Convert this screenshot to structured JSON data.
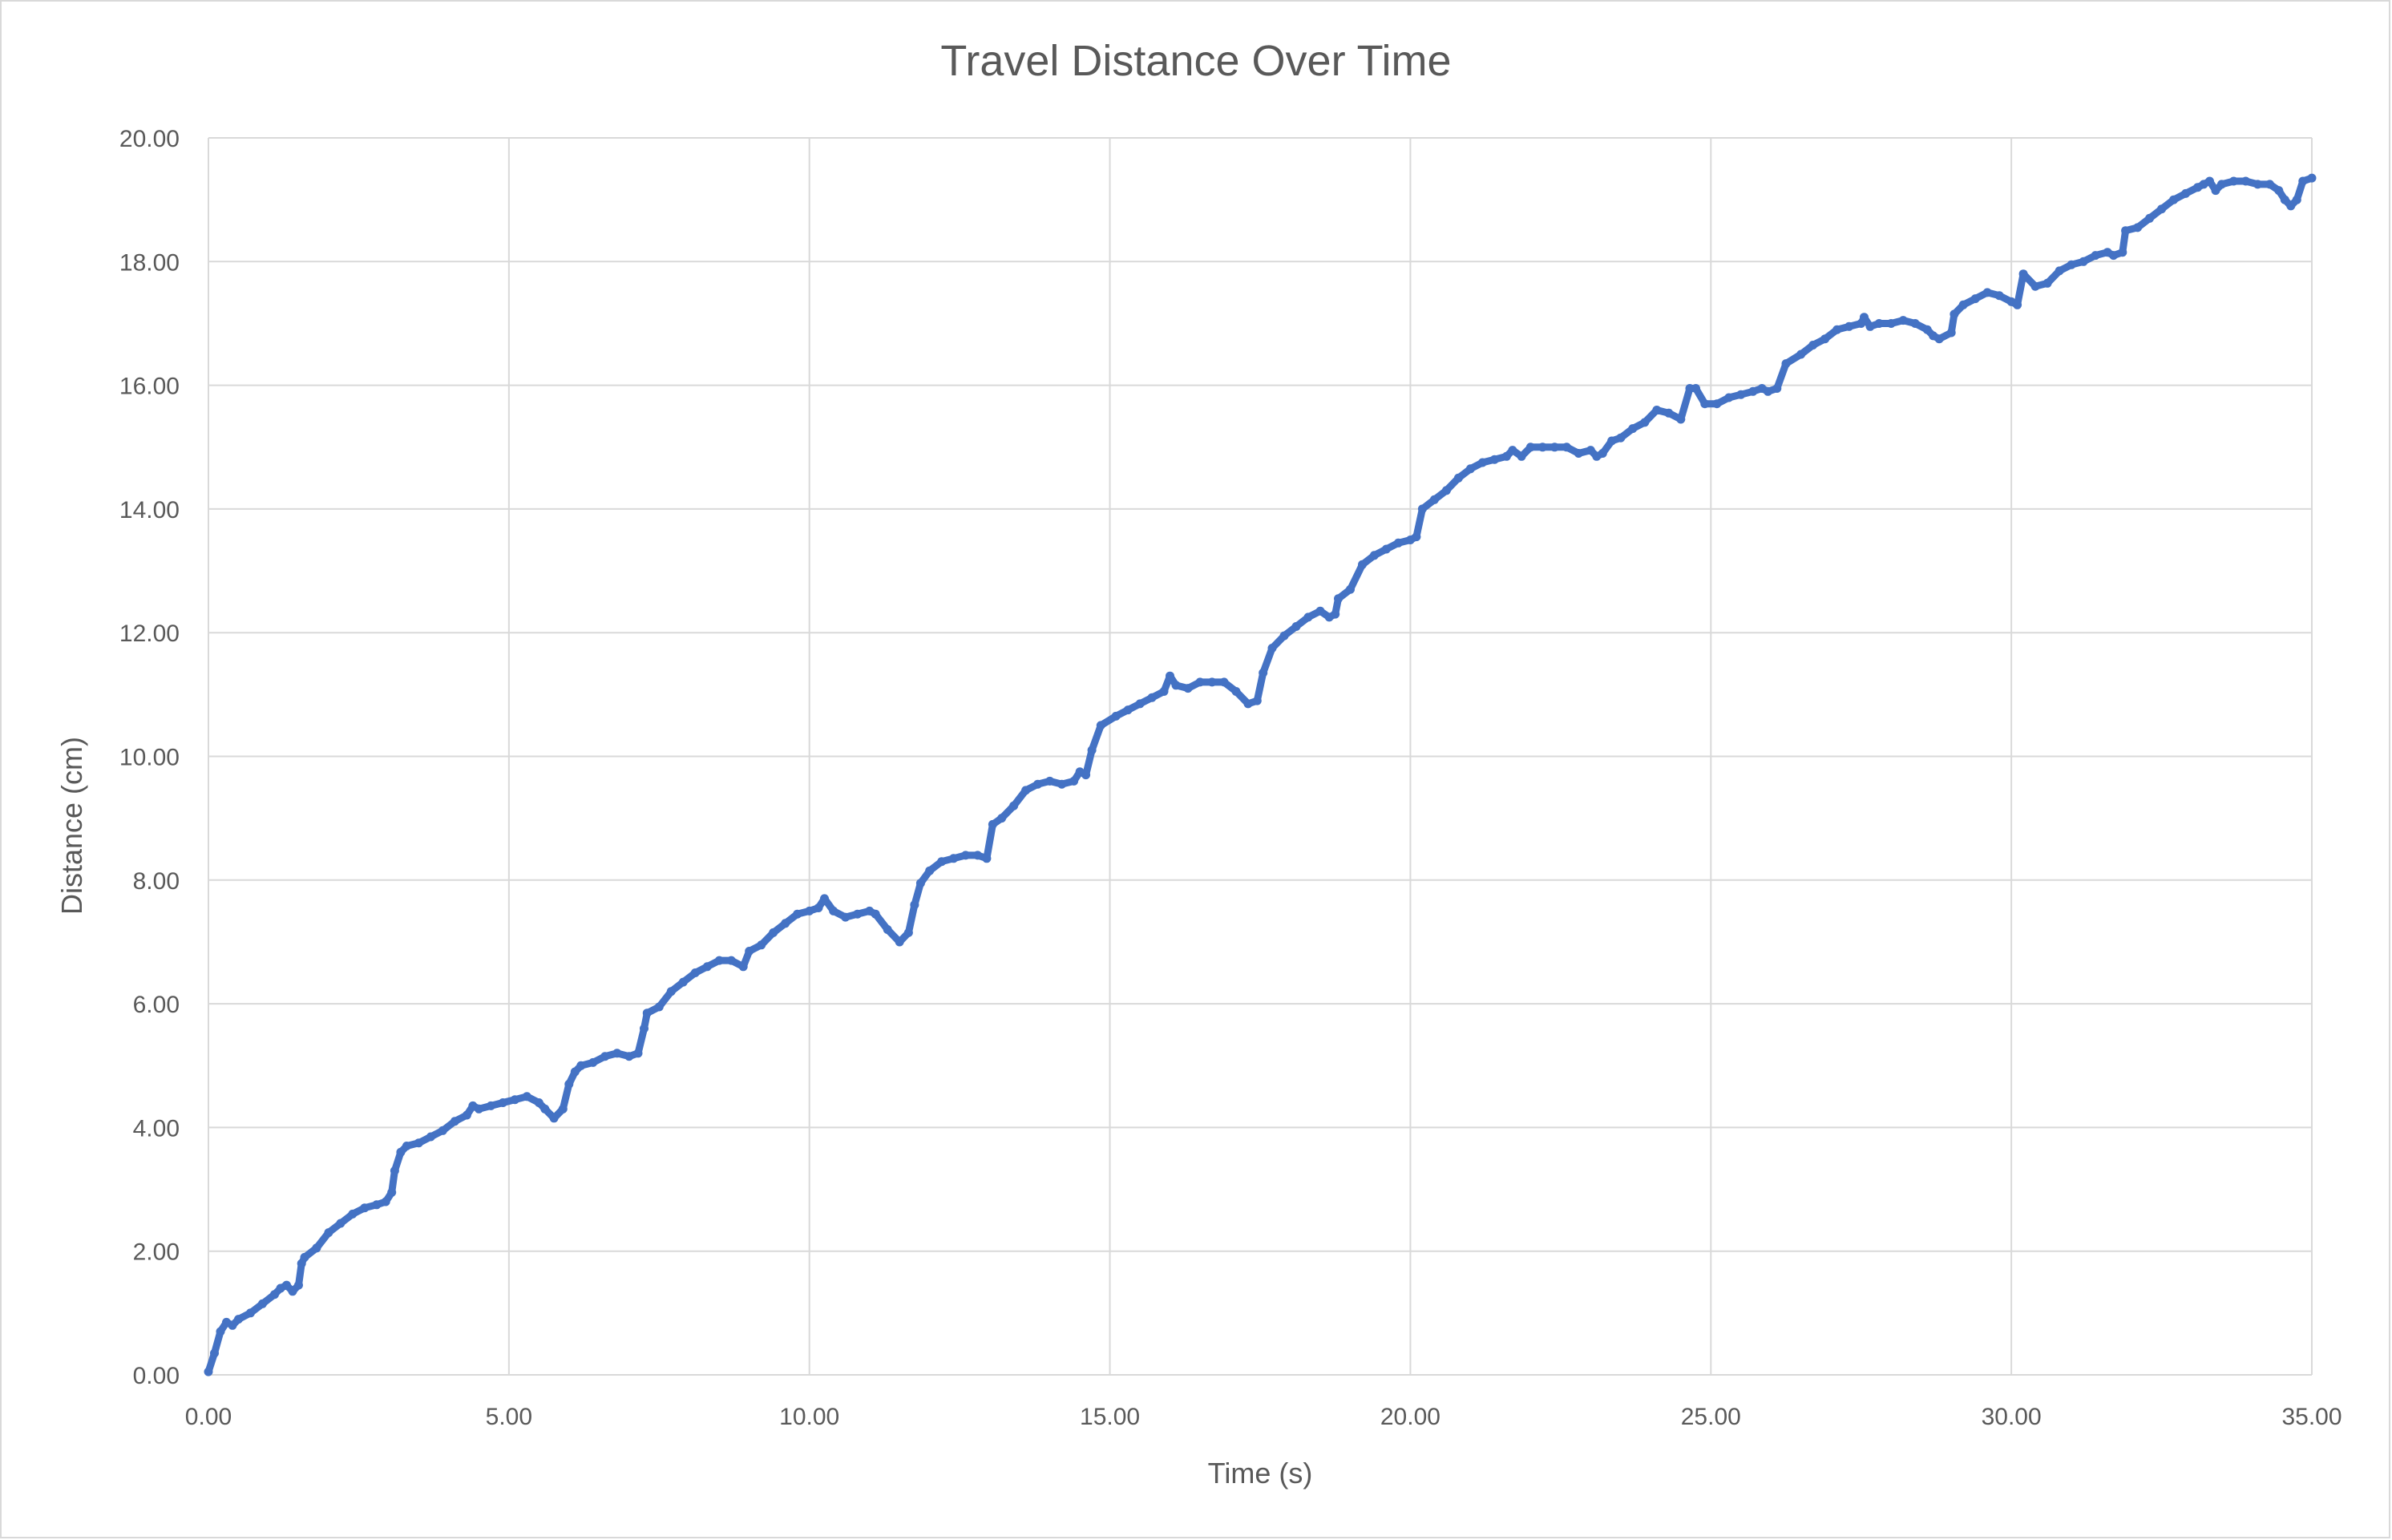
{
  "chart_data": {
    "type": "scatter",
    "title": "Travel Distance Over Time",
    "xlabel": "Time (s)",
    "ylabel": "Distance (cm)",
    "xlim": [
      0,
      35
    ],
    "ylim": [
      0,
      20
    ],
    "x_ticks": [
      "0.00",
      "5.00",
      "10.00",
      "15.00",
      "20.00",
      "25.00",
      "30.00",
      "35.00"
    ],
    "y_ticks": [
      "0.00",
      "2.00",
      "4.00",
      "6.00",
      "8.00",
      "10.00",
      "12.00",
      "14.00",
      "16.00",
      "18.00",
      "20.00"
    ],
    "grid": true,
    "legend": "none",
    "series": [
      {
        "color": "#4472C4",
        "points": [
          [
            0.0,
            0.05
          ],
          [
            0.1,
            0.35
          ],
          [
            0.2,
            0.7
          ],
          [
            0.3,
            0.85
          ],
          [
            0.4,
            0.8
          ],
          [
            0.5,
            0.9
          ],
          [
            0.7,
            1.0
          ],
          [
            0.9,
            1.15
          ],
          [
            1.1,
            1.3
          ],
          [
            1.2,
            1.4
          ],
          [
            1.3,
            1.45
          ],
          [
            1.4,
            1.35
          ],
          [
            1.5,
            1.45
          ],
          [
            1.55,
            1.8
          ],
          [
            1.6,
            1.9
          ],
          [
            1.8,
            2.05
          ],
          [
            2.0,
            2.3
          ],
          [
            2.2,
            2.45
          ],
          [
            2.4,
            2.6
          ],
          [
            2.6,
            2.7
          ],
          [
            2.8,
            2.75
          ],
          [
            2.95,
            2.8
          ],
          [
            3.05,
            2.95
          ],
          [
            3.1,
            3.3
          ],
          [
            3.2,
            3.6
          ],
          [
            3.3,
            3.7
          ],
          [
            3.5,
            3.75
          ],
          [
            3.7,
            3.85
          ],
          [
            3.9,
            3.95
          ],
          [
            4.1,
            4.1
          ],
          [
            4.3,
            4.2
          ],
          [
            4.4,
            4.35
          ],
          [
            4.5,
            4.3
          ],
          [
            4.7,
            4.35
          ],
          [
            4.9,
            4.4
          ],
          [
            5.1,
            4.45
          ],
          [
            5.3,
            4.5
          ],
          [
            5.5,
            4.4
          ],
          [
            5.6,
            4.3
          ],
          [
            5.75,
            4.15
          ],
          [
            5.9,
            4.3
          ],
          [
            6.0,
            4.7
          ],
          [
            6.1,
            4.9
          ],
          [
            6.2,
            5.0
          ],
          [
            6.4,
            5.05
          ],
          [
            6.6,
            5.15
          ],
          [
            6.8,
            5.2
          ],
          [
            7.0,
            5.15
          ],
          [
            7.15,
            5.2
          ],
          [
            7.25,
            5.6
          ],
          [
            7.3,
            5.85
          ],
          [
            7.5,
            5.95
          ],
          [
            7.7,
            6.2
          ],
          [
            7.9,
            6.35
          ],
          [
            8.1,
            6.5
          ],
          [
            8.3,
            6.6
          ],
          [
            8.5,
            6.7
          ],
          [
            8.7,
            6.7
          ],
          [
            8.9,
            6.6
          ],
          [
            9.0,
            6.85
          ],
          [
            9.2,
            6.95
          ],
          [
            9.4,
            7.15
          ],
          [
            9.6,
            7.3
          ],
          [
            9.8,
            7.45
          ],
          [
            10.0,
            7.5
          ],
          [
            10.15,
            7.55
          ],
          [
            10.25,
            7.7
          ],
          [
            10.4,
            7.5
          ],
          [
            10.6,
            7.4
          ],
          [
            10.8,
            7.45
          ],
          [
            11.0,
            7.5
          ],
          [
            11.1,
            7.45
          ],
          [
            11.3,
            7.2
          ],
          [
            11.5,
            7.0
          ],
          [
            11.65,
            7.15
          ],
          [
            11.75,
            7.6
          ],
          [
            11.85,
            7.95
          ],
          [
            12.0,
            8.15
          ],
          [
            12.2,
            8.3
          ],
          [
            12.4,
            8.35
          ],
          [
            12.6,
            8.4
          ],
          [
            12.8,
            8.4
          ],
          [
            12.95,
            8.35
          ],
          [
            13.05,
            8.9
          ],
          [
            13.2,
            9.0
          ],
          [
            13.4,
            9.2
          ],
          [
            13.6,
            9.45
          ],
          [
            13.8,
            9.55
          ],
          [
            14.0,
            9.6
          ],
          [
            14.2,
            9.55
          ],
          [
            14.4,
            9.6
          ],
          [
            14.5,
            9.75
          ],
          [
            14.6,
            9.7
          ],
          [
            14.7,
            10.1
          ],
          [
            14.85,
            10.5
          ],
          [
            15.1,
            10.65
          ],
          [
            15.3,
            10.75
          ],
          [
            15.5,
            10.85
          ],
          [
            15.7,
            10.95
          ],
          [
            15.9,
            11.05
          ],
          [
            16.0,
            11.3
          ],
          [
            16.1,
            11.15
          ],
          [
            16.3,
            11.1
          ],
          [
            16.5,
            11.2
          ],
          [
            16.7,
            11.2
          ],
          [
            16.9,
            11.2
          ],
          [
            17.1,
            11.05
          ],
          [
            17.3,
            10.85
          ],
          [
            17.45,
            10.9
          ],
          [
            17.55,
            11.35
          ],
          [
            17.7,
            11.75
          ],
          [
            17.9,
            11.95
          ],
          [
            18.1,
            12.1
          ],
          [
            18.3,
            12.25
          ],
          [
            18.5,
            12.35
          ],
          [
            18.65,
            12.25
          ],
          [
            18.75,
            12.3
          ],
          [
            18.8,
            12.55
          ],
          [
            19.0,
            12.7
          ],
          [
            19.2,
            13.1
          ],
          [
            19.4,
            13.25
          ],
          [
            19.6,
            13.35
          ],
          [
            19.8,
            13.45
          ],
          [
            20.0,
            13.5
          ],
          [
            20.1,
            13.55
          ],
          [
            20.2,
            14.0
          ],
          [
            20.4,
            14.15
          ],
          [
            20.6,
            14.3
          ],
          [
            20.8,
            14.5
          ],
          [
            21.0,
            14.65
          ],
          [
            21.2,
            14.75
          ],
          [
            21.4,
            14.8
          ],
          [
            21.6,
            14.85
          ],
          [
            21.7,
            14.95
          ],
          [
            21.85,
            14.85
          ],
          [
            22.0,
            15.0
          ],
          [
            22.2,
            15.0
          ],
          [
            22.4,
            15.0
          ],
          [
            22.6,
            15.0
          ],
          [
            22.8,
            14.9
          ],
          [
            23.0,
            14.95
          ],
          [
            23.1,
            14.85
          ],
          [
            23.2,
            14.9
          ],
          [
            23.35,
            15.1
          ],
          [
            23.5,
            15.15
          ],
          [
            23.7,
            15.3
          ],
          [
            23.9,
            15.4
          ],
          [
            24.1,
            15.6
          ],
          [
            24.3,
            15.55
          ],
          [
            24.5,
            15.45
          ],
          [
            24.65,
            15.95
          ],
          [
            24.75,
            15.95
          ],
          [
            24.9,
            15.7
          ],
          [
            25.1,
            15.7
          ],
          [
            25.3,
            15.8
          ],
          [
            25.5,
            15.85
          ],
          [
            25.7,
            15.9
          ],
          [
            25.85,
            15.95
          ],
          [
            25.95,
            15.9
          ],
          [
            26.1,
            15.95
          ],
          [
            26.25,
            16.35
          ],
          [
            26.5,
            16.5
          ],
          [
            26.7,
            16.65
          ],
          [
            26.9,
            16.75
          ],
          [
            27.1,
            16.9
          ],
          [
            27.3,
            16.95
          ],
          [
            27.5,
            17.0
          ],
          [
            27.55,
            17.1
          ],
          [
            27.65,
            16.95
          ],
          [
            27.8,
            17.0
          ],
          [
            28.0,
            17.0
          ],
          [
            28.2,
            17.05
          ],
          [
            28.4,
            17.0
          ],
          [
            28.6,
            16.9
          ],
          [
            28.7,
            16.8
          ],
          [
            28.8,
            16.75
          ],
          [
            29.0,
            16.85
          ],
          [
            29.05,
            17.15
          ],
          [
            29.2,
            17.3
          ],
          [
            29.4,
            17.4
          ],
          [
            29.6,
            17.5
          ],
          [
            29.8,
            17.45
          ],
          [
            30.0,
            17.35
          ],
          [
            30.1,
            17.3
          ],
          [
            30.2,
            17.8
          ],
          [
            30.4,
            17.6
          ],
          [
            30.6,
            17.65
          ],
          [
            30.8,
            17.85
          ],
          [
            31.0,
            17.95
          ],
          [
            31.2,
            18.0
          ],
          [
            31.4,
            18.1
          ],
          [
            31.6,
            18.15
          ],
          [
            31.7,
            18.1
          ],
          [
            31.85,
            18.15
          ],
          [
            31.9,
            18.5
          ],
          [
            32.1,
            18.55
          ],
          [
            32.3,
            18.7
          ],
          [
            32.5,
            18.85
          ],
          [
            32.7,
            19.0
          ],
          [
            32.9,
            19.1
          ],
          [
            33.1,
            19.2
          ],
          [
            33.2,
            19.25
          ],
          [
            33.3,
            19.3
          ],
          [
            33.4,
            19.15
          ],
          [
            33.5,
            19.25
          ],
          [
            33.7,
            19.3
          ],
          [
            33.9,
            19.3
          ],
          [
            34.1,
            19.25
          ],
          [
            34.3,
            19.25
          ],
          [
            34.45,
            19.15
          ],
          [
            34.55,
            19.0
          ],
          [
            34.65,
            18.9
          ],
          [
            34.75,
            19.0
          ],
          [
            34.85,
            19.3
          ],
          [
            35.0,
            19.35
          ]
        ]
      }
    ]
  }
}
